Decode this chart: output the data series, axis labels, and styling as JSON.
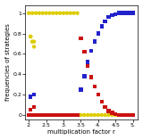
{
  "xlabel": "multiplication factor r",
  "ylabel": "frequencies of strategies",
  "xlim": [
    1.9,
    5.15
  ],
  "ylim": [
    -0.04,
    1.08
  ],
  "xticks": [
    2.0,
    2.5,
    3.0,
    3.5,
    4.0,
    4.5,
    5.0
  ],
  "yticks": [
    0.0,
    0.2,
    0.4,
    0.6,
    0.8,
    1.0
  ],
  "blue_color": "#2222cc",
  "red_color": "#cc1111",
  "yellow_color": "#ddcc00",
  "blue_data": {
    "r": [
      2.0,
      2.05,
      2.1,
      2.15,
      2.2,
      2.3,
      2.4,
      2.5,
      2.6,
      2.7,
      2.8,
      2.9,
      3.0,
      3.1,
      3.2,
      3.3,
      3.4,
      3.5,
      3.6,
      3.7,
      3.8,
      3.9,
      4.0,
      4.1,
      4.2,
      4.3,
      4.4,
      4.5,
      4.6,
      4.7,
      4.8,
      4.9,
      5.0
    ],
    "freq": [
      0.0,
      0.18,
      0.0,
      0.2,
      0.0,
      0.0,
      0.0,
      0.0,
      0.0,
      0.0,
      0.0,
      0.0,
      0.0,
      0.0,
      0.0,
      0.0,
      0.0,
      0.25,
      0.38,
      0.52,
      0.63,
      0.72,
      0.8,
      0.87,
      0.92,
      0.96,
      0.98,
      0.99,
      1.0,
      1.0,
      1.0,
      1.0,
      1.0
    ]
  },
  "red_data": {
    "r": [
      2.0,
      2.05,
      2.1,
      2.15,
      2.2,
      2.3,
      2.4,
      2.5,
      2.6,
      2.7,
      2.8,
      2.9,
      3.0,
      3.1,
      3.2,
      3.3,
      3.4,
      3.5,
      3.6,
      3.7,
      3.8,
      3.9,
      4.0,
      4.1,
      4.2,
      4.3,
      4.4,
      4.5,
      4.6,
      4.7,
      4.8,
      4.9,
      5.0
    ],
    "freq": [
      0.0,
      0.05,
      0.0,
      0.08,
      0.0,
      0.0,
      0.0,
      0.0,
      0.0,
      0.0,
      0.0,
      0.0,
      0.0,
      0.0,
      0.0,
      0.0,
      0.0,
      0.75,
      0.62,
      0.48,
      0.37,
      0.28,
      0.2,
      0.13,
      0.08,
      0.04,
      0.02,
      0.01,
      0.0,
      0.0,
      0.0,
      0.0,
      0.0
    ]
  },
  "yellow_data": {
    "r": [
      2.0,
      2.05,
      2.1,
      2.15,
      2.2,
      2.3,
      2.4,
      2.5,
      2.6,
      2.7,
      2.8,
      2.9,
      3.0,
      3.1,
      3.2,
      3.3,
      3.4,
      3.5,
      3.6,
      3.7,
      3.8,
      3.9,
      4.0,
      4.1,
      4.2,
      4.3,
      4.4,
      4.5,
      4.6,
      4.7,
      4.8,
      4.9,
      5.0
    ],
    "freq": [
      1.0,
      0.77,
      1.0,
      0.72,
      1.0,
      1.0,
      1.0,
      1.0,
      1.0,
      1.0,
      1.0,
      1.0,
      1.0,
      1.0,
      1.0,
      1.0,
      1.0,
      0.0,
      0.0,
      0.0,
      0.0,
      0.0,
      0.0,
      0.0,
      0.0,
      0.0,
      0.0,
      0.0,
      0.0,
      0.0,
      0.0,
      0.0,
      0.0
    ]
  },
  "yellow_low": {
    "r": [
      2.05,
      2.1,
      2.15
    ],
    "freq": [
      0.77,
      0.72,
      0.67
    ]
  },
  "figsize": [
    1.6,
    1.57
  ],
  "dpi": 100
}
